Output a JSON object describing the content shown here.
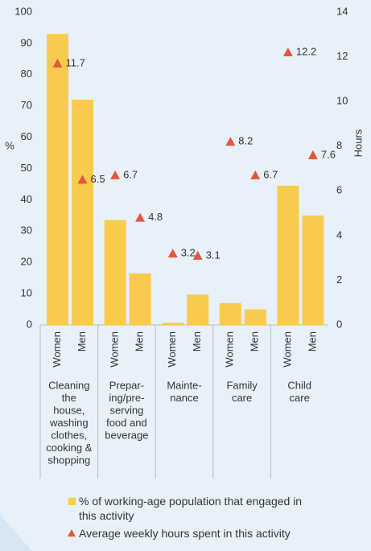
{
  "chart_data": {
    "type": "bar-triangle",
    "categories": [
      "Women",
      "Men",
      "Women",
      "Men",
      "Women",
      "Men",
      "Women",
      "Men",
      "Women",
      "Men"
    ],
    "groups": [
      [
        "Cleaning",
        "the",
        "house,",
        "washing",
        "clothes,",
        "cooking &",
        "shopping"
      ],
      [
        "Prepar-",
        "ing/pre-",
        "serving",
        "food and",
        "beverage"
      ],
      [
        "Mainte-",
        "nance"
      ],
      [
        "Family",
        "care"
      ],
      [
        "Child",
        "care"
      ]
    ],
    "ylabel": "%",
    "y2label": "Hours",
    "ylim": [
      0,
      100
    ],
    "yticks": [
      0,
      10,
      20,
      30,
      40,
      50,
      60,
      70,
      80,
      90,
      100
    ],
    "y2lim": [
      0,
      14
    ],
    "y2ticks": [
      0,
      2,
      4,
      6,
      8,
      10,
      12,
      14
    ],
    "series": [
      {
        "name": "% of working-age population that engaged in this activity",
        "color": "#f8cb4e",
        "values": [
          93,
          72,
          33.5,
          16.5,
          0.7,
          9.7,
          7,
          5,
          44.5,
          35
        ]
      },
      {
        "name": "Average weekly hours spent in this activity",
        "color": "#e2583a",
        "axis": "y2",
        "values": [
          11.7,
          6.5,
          6.7,
          4.8,
          3.2,
          3.1,
          8.2,
          6.7,
          12.2,
          7.6
        ]
      }
    ]
  }
}
